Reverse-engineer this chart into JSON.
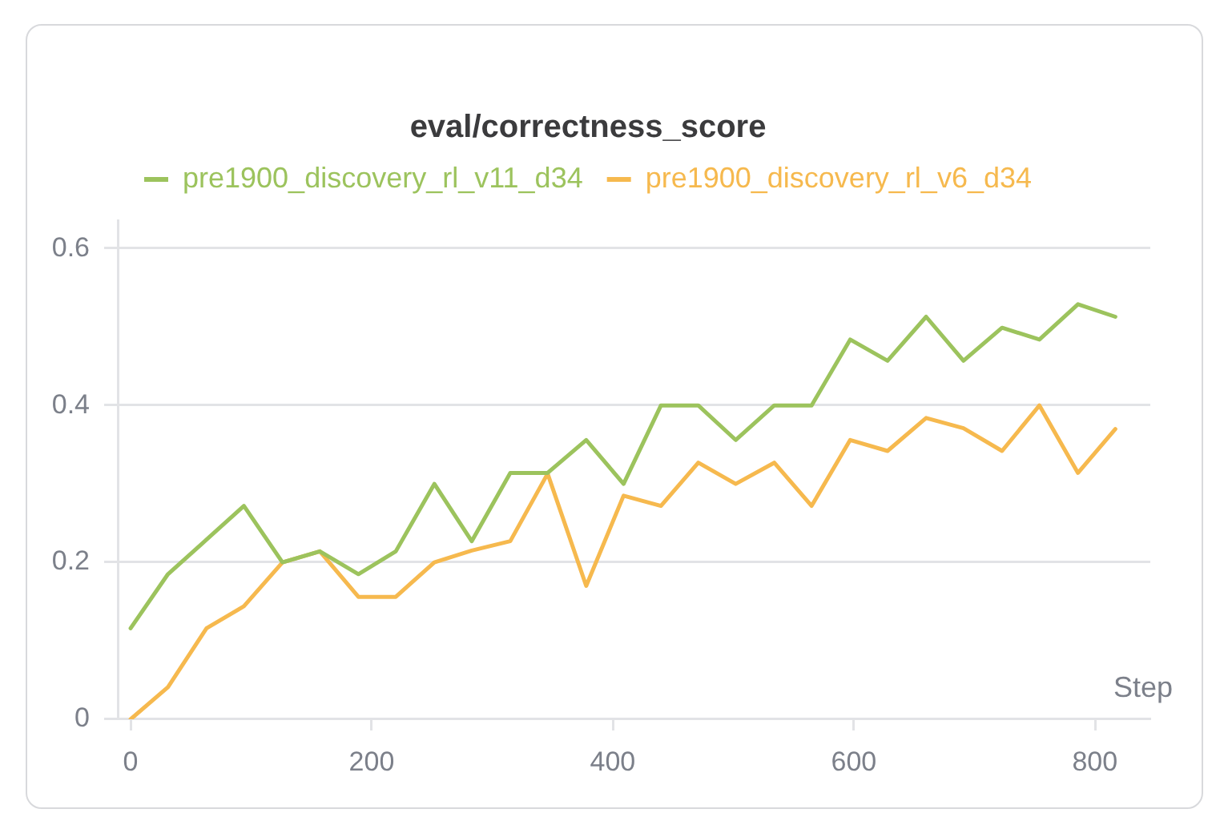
{
  "chart_data": {
    "type": "line",
    "title": "eval/correctness_score",
    "xlabel": "Step",
    "x": [
      0,
      31,
      63,
      94,
      126,
      157,
      189,
      220,
      252,
      283,
      315,
      346,
      378,
      409,
      440,
      471,
      502,
      534,
      565,
      597,
      628,
      660,
      691,
      723,
      754,
      786,
      817
    ],
    "series": [
      {
        "name": "pre1900_discovery_rl_v11_d34",
        "color": "#9cc35d",
        "values": [
          0.116,
          0.185,
          0.229,
          0.272,
          0.2,
          0.214,
          0.185,
          0.214,
          0.3,
          0.227,
          0.314,
          0.314,
          0.356,
          0.3,
          0.4,
          0.4,
          0.356,
          0.4,
          0.4,
          0.484,
          0.457,
          0.513,
          0.457,
          0.499,
          0.484,
          0.529,
          0.513
        ]
      },
      {
        "name": "pre1900_discovery_rl_v6_d34",
        "color": "#f6b94e",
        "values": [
          0,
          0.041,
          0.116,
          0.144,
          0.2,
          0.214,
          0.156,
          0.156,
          0.2,
          0.215,
          0.227,
          0.313,
          0.17,
          0.285,
          0.272,
          0.327,
          0.3,
          0.327,
          0.272,
          0.356,
          0.342,
          0.384,
          0.371,
          0.342,
          0.4,
          0.314,
          0.37
        ]
      }
    ],
    "xlim": [
      -10,
      846
    ],
    "ylim": [
      0,
      0.635
    ],
    "xticks": [
      0,
      200,
      400,
      600,
      800
    ],
    "yticks": [
      0,
      0.2,
      0.4,
      0.6
    ],
    "grid": "y",
    "legend": "top"
  }
}
